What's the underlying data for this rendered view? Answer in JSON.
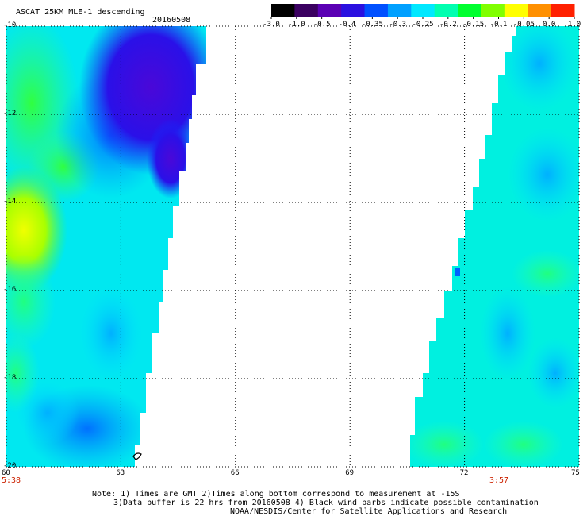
{
  "header": {
    "title": "ASCAT 25KM MLE-1 descending",
    "date": "20160508"
  },
  "colorbar": {
    "labels": [
      "-3.0",
      "-1.0",
      "-0.5",
      "-0.4",
      "-0.35",
      "-0.3",
      "-0.25",
      "-0.2",
      "-0.15",
      "-0.1",
      "-0.05",
      "0.0",
      "1.0"
    ],
    "colors": [
      "#000000",
      "#3a0060",
      "#5a00b4",
      "#2a10e0",
      "#0050ff",
      "#00a0ff",
      "#00e8ff",
      "#00ffb0",
      "#00ff30",
      "#80ff00",
      "#ffff00",
      "#ff9000",
      "#ff2000"
    ]
  },
  "axes": {
    "lon_ticks": [
      "60",
      "63",
      "66",
      "69",
      "72",
      "75"
    ],
    "lat_ticks": [
      "10",
      "12",
      "14",
      "16",
      "18",
      "20"
    ],
    "lon_range": [
      60,
      75
    ],
    "lat_range": [
      10,
      20
    ],
    "grid": true
  },
  "times": {
    "left": "5:38",
    "right": "3:57"
  },
  "notes": [
    "Note: 1) Times are GMT 2)Times along bottom correspond to measurement at -15S",
    "3)Data buffer is 22 hrs from 20160508 4) Black wind barbs indicate possible contamination",
    "NOAA/NESDIS/Center for Satellite Applications and Research"
  ]
}
